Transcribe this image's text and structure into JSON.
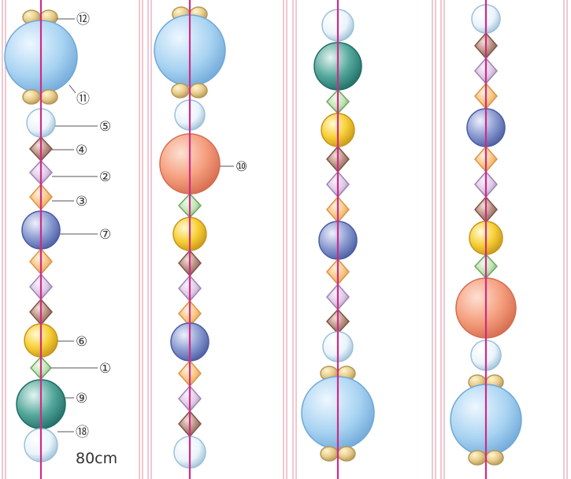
{
  "palette": {
    "frame": "#e5a3b3",
    "thread": "#d02a86",
    "line": "#555555",
    "large_clear": [
      "#eef7ff",
      "#a8d3f2",
      "#6fa8d8"
    ],
    "clear_round": [
      "#ffffff",
      "#eaf4fb",
      "#9cc0d8"
    ],
    "salmon": [
      "#fde0d2",
      "#f5a080",
      "#d56a4d"
    ],
    "teal": [
      "#e3f5f0",
      "#55a79c",
      "#1f6e66"
    ],
    "navy": [
      "#eef0fb",
      "#8b9bd1",
      "#4a5ba2"
    ],
    "gold": [
      "#fffad6",
      "#f7cf35",
      "#c7961a"
    ],
    "brown_diamond": [
      "#f3e0d8",
      "#b48a7c",
      "#7d5548"
    ],
    "lilac_diamond": [
      "#faf1fb",
      "#dcc7e6",
      "#9d86b0"
    ],
    "orange_diamond": [
      "#fff2dd",
      "#f8c37f",
      "#d8954a"
    ],
    "green_diamond": [
      "#f0fbeb",
      "#bfe1b2",
      "#6ea663"
    ],
    "tan_bead": [
      "#fff5cc",
      "#e7cc8c",
      "#b69858"
    ]
  },
  "labels": {
    "l12": "⑫",
    "l11": "⑪",
    "l5": "⑤",
    "l4": "④",
    "l2": "②",
    "l3": "③",
    "l7": "⑦",
    "l6": "⑥",
    "l1": "①",
    "l9": "⑨",
    "l18": "⑱",
    "l10": "⑩"
  },
  "length_text": "80cm"
}
